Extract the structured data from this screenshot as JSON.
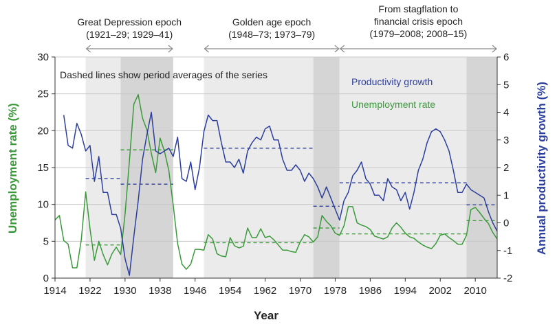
{
  "chart_data": {
    "type": "line",
    "xlabel": "Year",
    "ylabel_left": "Unemployment rate (%)",
    "ylabel_right": "Annual productivity growth (%)",
    "xlim": [
      1914,
      2015
    ],
    "xticks": [
      1914,
      1922,
      1930,
      1938,
      1946,
      1954,
      1962,
      1970,
      1978,
      1986,
      1994,
      2002,
      2010
    ],
    "ylim_left": [
      0,
      30
    ],
    "yticks_left": [
      0,
      5,
      10,
      15,
      20,
      25,
      30
    ],
    "ylim_right": [
      -2,
      6
    ],
    "yticks_right": [
      -2,
      -1,
      0,
      1,
      2,
      3,
      4,
      5,
      6
    ],
    "annotation": "Dashed lines show period averages of the series",
    "colors": {
      "unemployment": "#3a9a3a",
      "productivity": "#2c3e9c",
      "shade_light": "#ebebeb",
      "shade_dark": "#d5d5d5",
      "grid": "#c8c8c8",
      "arrow": "#8a8a8a"
    },
    "epochs": [
      {
        "title": "Great Depression epoch",
        "range": "(1921–29; 1929–41)",
        "arrow_from": 1921,
        "arrow_to": 1941
      },
      {
        "title": "Golden age epoch",
        "range": "(1948–73; 1973–79)",
        "arrow_from": 1948,
        "arrow_to": 1979
      },
      {
        "title_line1": "From stagflation to",
        "title_line2": "financial crisis epoch",
        "range": "(1979–2008; 2008–15)",
        "arrow_from": 1979,
        "arrow_to": 2015
      }
    ],
    "shaded_periods": [
      {
        "from": 1921,
        "to": 1929,
        "tone": "light"
      },
      {
        "from": 1929,
        "to": 1941,
        "tone": "dark"
      },
      {
        "from": 1948,
        "to": 1973,
        "tone": "light"
      },
      {
        "from": 1973,
        "to": 1979,
        "tone": "dark"
      },
      {
        "from": 1979,
        "to": 2008,
        "tone": "light"
      },
      {
        "from": 2008,
        "to": 2015,
        "tone": "dark"
      }
    ],
    "series": [
      {
        "name": "Unemployment rate",
        "axis": "left",
        "x": [
          1914,
          1915,
          1916,
          1917,
          1918,
          1919,
          1920,
          1921,
          1922,
          1923,
          1924,
          1925,
          1926,
          1927,
          1928,
          1929,
          1930,
          1931,
          1932,
          1933,
          1934,
          1935,
          1936,
          1937,
          1938,
          1939,
          1940,
          1941,
          1942,
          1943,
          1944,
          1945,
          1946,
          1947,
          1948,
          1949,
          1950,
          1951,
          1952,
          1953,
          1954,
          1955,
          1956,
          1957,
          1958,
          1959,
          1960,
          1961,
          1962,
          1963,
          1964,
          1965,
          1966,
          1967,
          1968,
          1969,
          1970,
          1971,
          1972,
          1973,
          1974,
          1975,
          1976,
          1977,
          1978,
          1979,
          1980,
          1981,
          1982,
          1983,
          1984,
          1985,
          1986,
          1987,
          1988,
          1989,
          1990,
          1991,
          1992,
          1993,
          1994,
          1995,
          1996,
          1997,
          1998,
          1999,
          2000,
          2001,
          2002,
          2003,
          2004,
          2005,
          2006,
          2007,
          2008,
          2009,
          2010,
          2011,
          2012,
          2013,
          2014,
          2015
        ],
        "values": [
          7.9,
          8.5,
          5.1,
          4.6,
          1.4,
          1.4,
          5.2,
          11.7,
          6.7,
          2.4,
          5.0,
          3.2,
          1.8,
          3.3,
          4.2,
          3.2,
          8.7,
          15.9,
          23.6,
          24.9,
          21.7,
          20.1,
          16.9,
          14.3,
          19.0,
          17.2,
          14.6,
          9.9,
          4.7,
          1.9,
          1.2,
          1.9,
          3.9,
          3.9,
          3.8,
          5.9,
          5.3,
          3.3,
          3.0,
          2.9,
          5.5,
          4.4,
          4.1,
          4.3,
          6.8,
          5.5,
          5.5,
          6.7,
          5.5,
          5.7,
          5.2,
          4.5,
          3.8,
          3.8,
          3.6,
          3.5,
          4.9,
          5.9,
          5.6,
          4.9,
          5.6,
          8.5,
          7.7,
          7.1,
          6.1,
          5.8,
          7.1,
          9.7,
          9.7,
          7.5,
          7.2,
          7.0,
          6.6,
          5.7,
          5.5,
          5.3,
          5.6,
          6.8,
          7.5,
          6.9,
          6.1,
          5.6,
          5.4,
          4.9,
          4.5,
          4.2,
          4.0,
          4.7,
          5.8,
          6.0,
          5.5,
          5.1,
          4.6,
          4.6,
          5.8,
          9.3,
          9.6,
          8.9,
          8.1,
          7.4,
          6.2,
          5.3
        ]
      },
      {
        "name": "Productivity growth",
        "axis": "right",
        "x": [
          1916,
          1917,
          1918,
          1919,
          1920,
          1921,
          1922,
          1923,
          1924,
          1925,
          1926,
          1927,
          1928,
          1929,
          1930,
          1931,
          1932,
          1933,
          1934,
          1935,
          1936,
          1937,
          1938,
          1939,
          1940,
          1941,
          1942,
          1943,
          1944,
          1945,
          1946,
          1947,
          1948,
          1949,
          1950,
          1951,
          1952,
          1953,
          1954,
          1955,
          1956,
          1957,
          1958,
          1959,
          1960,
          1961,
          1962,
          1963,
          1964,
          1965,
          1966,
          1967,
          1968,
          1969,
          1970,
          1971,
          1972,
          1973,
          1974,
          1975,
          1976,
          1977,
          1978,
          1979,
          1980,
          1981,
          1982,
          1983,
          1984,
          1985,
          1986,
          1987,
          1988,
          1989,
          1990,
          1991,
          1992,
          1993,
          1994,
          1995,
          1996,
          1997,
          1998,
          1999,
          2000,
          2001,
          2002,
          2003,
          2004,
          2005,
          2006,
          2007,
          2008,
          2009,
          2010,
          2011,
          2012,
          2013,
          2014,
          2015
        ],
        "values": [
          3.9,
          2.8,
          2.7,
          3.6,
          3.2,
          2.6,
          2.8,
          1.5,
          2.4,
          1.1,
          1.1,
          0.3,
          0.3,
          -0.2,
          -1.3,
          -1.9,
          -0.5,
          0.8,
          2.3,
          3.2,
          4.0,
          2.6,
          2.5,
          2.6,
          2.7,
          2.4,
          3.1,
          1.6,
          1.5,
          2.2,
          1.2,
          2.0,
          3.3,
          3.9,
          3.7,
          3.7,
          2.9,
          2.2,
          2.2,
          2.0,
          2.3,
          1.8,
          2.6,
          2.9,
          3.1,
          3.0,
          3.4,
          3.5,
          3.0,
          3.0,
          2.3,
          1.9,
          1.9,
          2.1,
          1.9,
          1.5,
          1.8,
          1.6,
          1.3,
          0.9,
          1.3,
          0.9,
          0.5,
          0.1,
          0.8,
          1.1,
          1.7,
          1.9,
          2.2,
          1.6,
          1.4,
          1.0,
          1.0,
          0.8,
          1.6,
          1.3,
          1.2,
          0.8,
          1.1,
          0.5,
          1.1,
          1.9,
          2.3,
          2.9,
          3.3,
          3.4,
          3.3,
          3.0,
          2.6,
          1.9,
          1.1,
          1.1,
          1.4,
          1.2,
          1.1,
          1.0,
          0.9,
          0.4,
          0.0,
          -0.3
        ]
      }
    ],
    "period_averages": {
      "unemployment": [
        {
          "from": 1921,
          "to": 1929,
          "value": 4.5
        },
        {
          "from": 1929,
          "to": 1941,
          "value": 17.4
        },
        {
          "from": 1948,
          "to": 1973,
          "value": 4.8
        },
        {
          "from": 1973,
          "to": 1979,
          "value": 6.8
        },
        {
          "from": 1979,
          "to": 2008,
          "value": 6.0
        },
        {
          "from": 2008,
          "to": 2015,
          "value": 7.8
        }
      ],
      "productivity": [
        {
          "from": 1921,
          "to": 1929,
          "value": 1.6
        },
        {
          "from": 1929,
          "to": 1941,
          "value": 1.4
        },
        {
          "from": 1948,
          "to": 1973,
          "value": 2.7
        },
        {
          "from": 1973,
          "to": 1979,
          "value": 0.6
        },
        {
          "from": 1979,
          "to": 2008,
          "value": 1.45
        },
        {
          "from": 2008,
          "to": 2015,
          "value": 0.65
        }
      ]
    }
  }
}
